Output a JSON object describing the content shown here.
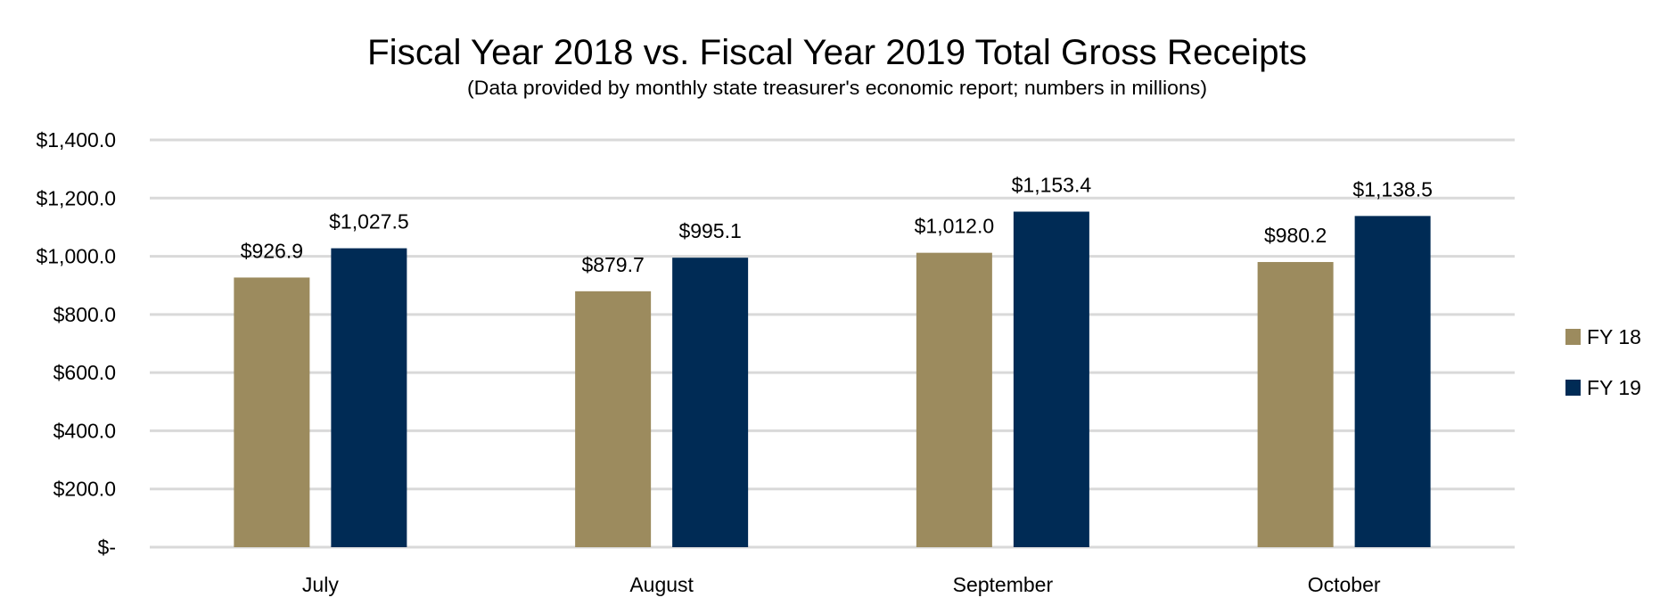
{
  "chart_data": {
    "type": "bar",
    "title": "Fiscal Year 2018 vs. Fiscal Year 2019 Total Gross Receipts",
    "subtitle": "(Data provided by monthly state treasurer's economic report; numbers in millions)",
    "categories": [
      "July",
      "August",
      "September",
      "October"
    ],
    "series": [
      {
        "name": "FY 18",
        "color": "#9C8B5E",
        "values": [
          926.9,
          879.7,
          1012.0,
          980.2
        ],
        "labels": [
          "$926.9",
          "$879.7",
          "$1,012.0",
          "$980.2"
        ]
      },
      {
        "name": "FY 19",
        "color": "#002B55",
        "values": [
          1027.5,
          995.1,
          1153.4,
          1138.5
        ],
        "labels": [
          "$1,027.5",
          "$995.1",
          "$1,153.4",
          "$1,138.5"
        ]
      }
    ],
    "ylim": [
      0,
      1400
    ],
    "yticks": [
      0,
      200,
      400,
      600,
      800,
      1000,
      1200,
      1400
    ],
    "ytick_labels": [
      "$-",
      "$200.0",
      "$400.0",
      "$600.0",
      "$800.0",
      "$1,000.0",
      "$1,200.0",
      "$1,400.0"
    ],
    "grid": true,
    "grid_color": "#D9D9D9",
    "legend_position": "right"
  }
}
